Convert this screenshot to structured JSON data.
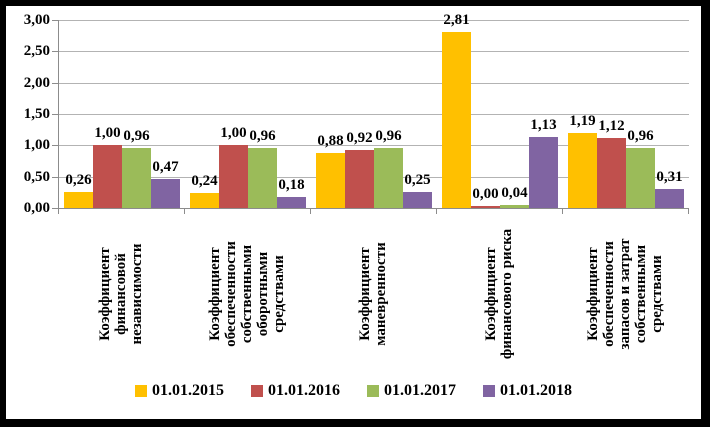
{
  "chart_data": {
    "type": "bar",
    "title": "",
    "xlabel": "",
    "ylabel": "",
    "categories": [
      "Коэффициент\nфинансовой\nнезависимости",
      "Коэффициент\nобеспеченности\nсобственными\nоборотными\nсредствами",
      "Коэффициент\nманевренности",
      "Коэффициент\nфинансового риска",
      "Коэффициент\nобеспеченности\nзапасов и затрат\nсобственными\nсредствами"
    ],
    "series": [
      {
        "name": "01.01.2015",
        "color": "#FFC000",
        "values": [
          0.26,
          0.24,
          0.88,
          2.81,
          1.19
        ],
        "labels": [
          "0,26",
          "0,24",
          "0,88",
          "2,81",
          "1,19"
        ]
      },
      {
        "name": "01.01.2016",
        "color": "#C0504D",
        "values": [
          1.0,
          1.0,
          0.92,
          0.0,
          1.12
        ],
        "labels": [
          "1,00",
          "1,00",
          "0,92",
          "0,00",
          "1,12"
        ]
      },
      {
        "name": "01.01.2017",
        "color": "#9BBB59",
        "values": [
          0.96,
          0.96,
          0.96,
          0.04,
          0.96
        ],
        "labels": [
          "0,96",
          "0,96",
          "0,96",
          "0,04",
          "0,96"
        ]
      },
      {
        "name": "01.01.2018",
        "color": "#8064A2",
        "values": [
          0.47,
          0.18,
          0.25,
          1.13,
          0.31
        ],
        "labels": [
          "0,47",
          "0,18",
          "0,25",
          "1,13",
          "0,31"
        ]
      }
    ],
    "ylim": [
      0,
      3
    ],
    "ytick_step": 0.5,
    "yticks": [
      "0,00",
      "0,50",
      "1,00",
      "1,50",
      "2,00",
      "2,50",
      "3,00"
    ],
    "grid": true,
    "legend_position": "bottom",
    "colors": {
      "gridline": "#B3B3B3",
      "axis": "#8C8C8C",
      "frame": "#000000",
      "background": "#FFFFFF",
      "text": "#000000"
    }
  }
}
